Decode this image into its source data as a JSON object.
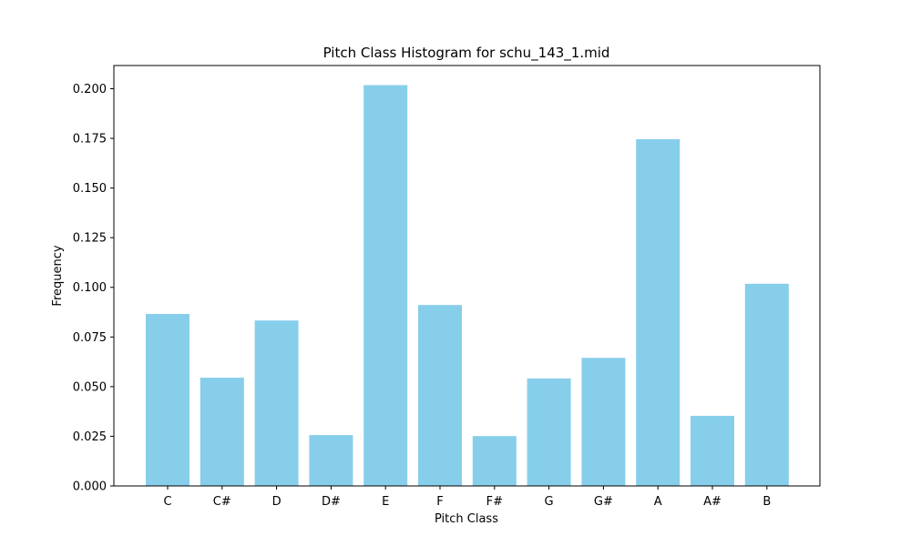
{
  "chart_data": {
    "type": "bar",
    "title": "Pitch Class Histogram for schu_143_1.mid",
    "xlabel": "Pitch Class",
    "ylabel": "Frequency",
    "categories": [
      "C",
      "C#",
      "D",
      "D#",
      "E",
      "F",
      "F#",
      "G",
      "G#",
      "A",
      "A#",
      "B"
    ],
    "values": [
      0.0866,
      0.0545,
      0.0833,
      0.0256,
      0.2018,
      0.0911,
      0.0251,
      0.0541,
      0.0645,
      0.1746,
      0.0353,
      0.1018
    ],
    "ylim": [
      0,
      0.21168
    ],
    "yticks": [
      "0.000",
      "0.025",
      "0.050",
      "0.075",
      "0.100",
      "0.125",
      "0.150",
      "0.175",
      "0.200"
    ],
    "bar_color": "#87ceeb",
    "grid": false,
    "legend": false
  }
}
